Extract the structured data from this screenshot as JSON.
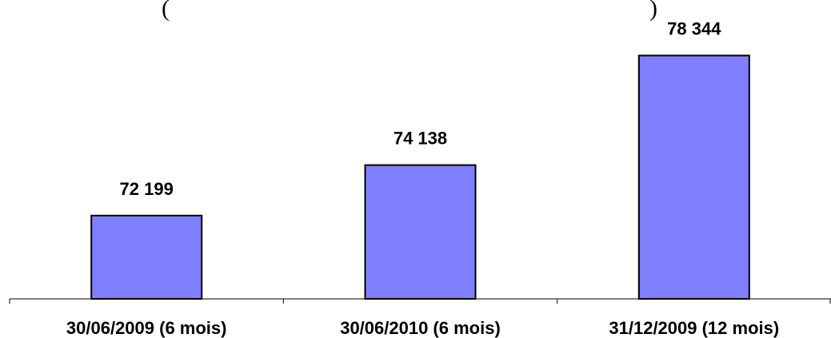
{
  "chart_data": {
    "type": "bar",
    "categories": [
      "30/06/2009 (6 mois)",
      "30/06/2010 (6 mois)",
      "31/12/2009 (12 mois)"
    ],
    "values": [
      72199,
      74138,
      78344
    ],
    "data_labels": [
      "72 199",
      "74 138",
      "78 344"
    ],
    "title": "",
    "xlabel": "",
    "ylabel": "",
    "ylim": [
      69000,
      79250
    ],
    "grid": false,
    "legend": "none",
    "title_fragment": [
      "(",
      ")"
    ],
    "colors": {
      "bar_fill": "#8080ff",
      "bar_stroke": "#000000",
      "text": "#000000"
    }
  }
}
